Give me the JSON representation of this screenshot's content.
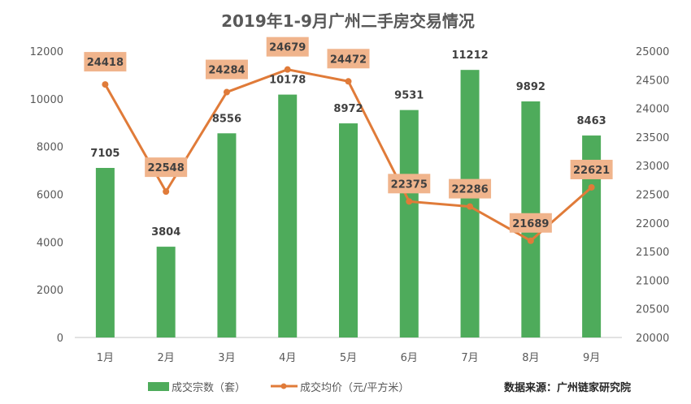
{
  "chart_data": {
    "type": "bar+line",
    "title": "2019年1-9月广州二手房交易情况",
    "categories": [
      "1月",
      "2月",
      "3月",
      "4月",
      "5月",
      "6月",
      "7月",
      "8月",
      "9月"
    ],
    "series": [
      {
        "name": "成交宗数（套）",
        "type": "bar",
        "axis": "left",
        "color": "#4EAB5B",
        "values": [
          7105,
          3804,
          8556,
          10178,
          8972,
          9531,
          11212,
          9892,
          8463
        ]
      },
      {
        "name": "成交均价（元/平方米）",
        "type": "line",
        "axis": "right",
        "color": "#E07B39",
        "label_bg": "#F0B48C",
        "values": [
          24418,
          22548,
          24284,
          24679,
          24472,
          22375,
          22286,
          21689,
          22621
        ]
      }
    ],
    "y_left": {
      "min": 0,
      "max": 12000,
      "ticks": [
        "0",
        "2000",
        "4000",
        "6000",
        "8000",
        "10000",
        "12000"
      ]
    },
    "y_right": {
      "min": 20000,
      "max": 25000,
      "ticks": [
        "20000",
        "20500",
        "21000",
        "21500",
        "22000",
        "22500",
        "23000",
        "23500",
        "24000",
        "24500",
        "25000"
      ]
    },
    "legend_position": "bottom",
    "source": "数据来源：广州链家研究院"
  }
}
